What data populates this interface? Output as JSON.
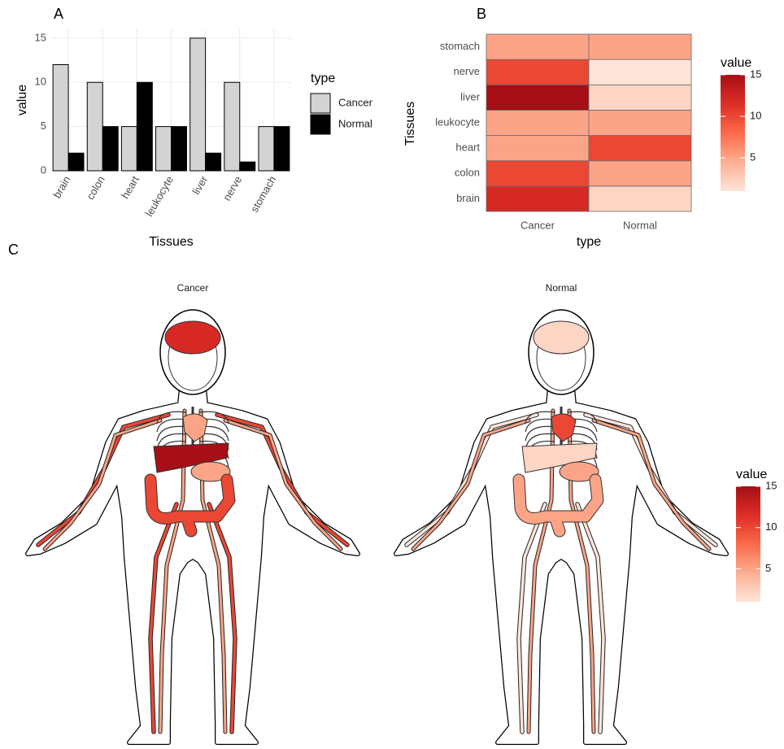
{
  "chart_data": [
    {
      "type": "bar",
      "label": "A",
      "xlabel": "Tissues",
      "ylabel": "value",
      "categories": [
        "brain",
        "colon",
        "heart",
        "leukocyte",
        "liver",
        "nerve",
        "stomach"
      ],
      "series": [
        {
          "name": "Cancer",
          "color": "#d3d3d3",
          "values": [
            12,
            10,
            5,
            5,
            15,
            10,
            5
          ]
        },
        {
          "name": "Normal",
          "color": "#000000",
          "values": [
            2,
            5,
            10,
            5,
            2,
            1,
            5
          ]
        }
      ],
      "ylim": [
        0,
        16
      ],
      "yticks": [
        0,
        5,
        10,
        15
      ],
      "grid": true,
      "legend_title": "type",
      "legend": "right"
    },
    {
      "type": "heatmap",
      "label": "B",
      "xlabel": "type",
      "ylabel": "Tissues",
      "categories": [
        "brain",
        "colon",
        "heart",
        "leukocyte",
        "liver",
        "nerve",
        "stomach"
      ],
      "series": [
        {
          "name": "Cancer",
          "values": [
            12,
            10,
            5,
            5,
            15,
            10,
            5
          ]
        },
        {
          "name": "Normal",
          "values": [
            2,
            5,
            10,
            5,
            2,
            1,
            5
          ]
        }
      ],
      "legend_title": "value",
      "colorbar_lim": [
        1,
        15
      ],
      "colorbar_ticks": [
        5,
        10,
        15
      ],
      "colors": [
        "#fee5d9",
        "#fcae91",
        "#fb6a4a",
        "#de2d26",
        "#a50f15"
      ]
    },
    {
      "type": "anatomy",
      "label": "C",
      "categories": [
        "brain",
        "colon",
        "heart",
        "leukocyte",
        "liver",
        "nerve",
        "stomach"
      ],
      "series": [
        {
          "name": "Cancer",
          "values": [
            12,
            10,
            5,
            5,
            15,
            10,
            5
          ]
        },
        {
          "name": "Normal",
          "values": [
            2,
            5,
            10,
            5,
            2,
            1,
            5
          ]
        }
      ],
      "legend_title": "value",
      "colorbar_lim": [
        1,
        15
      ],
      "colorbar_ticks": [
        5,
        10,
        15
      ],
      "colors": [
        "#fee5d9",
        "#fcae91",
        "#fb6a4a",
        "#de2d26",
        "#a50f15"
      ]
    }
  ]
}
